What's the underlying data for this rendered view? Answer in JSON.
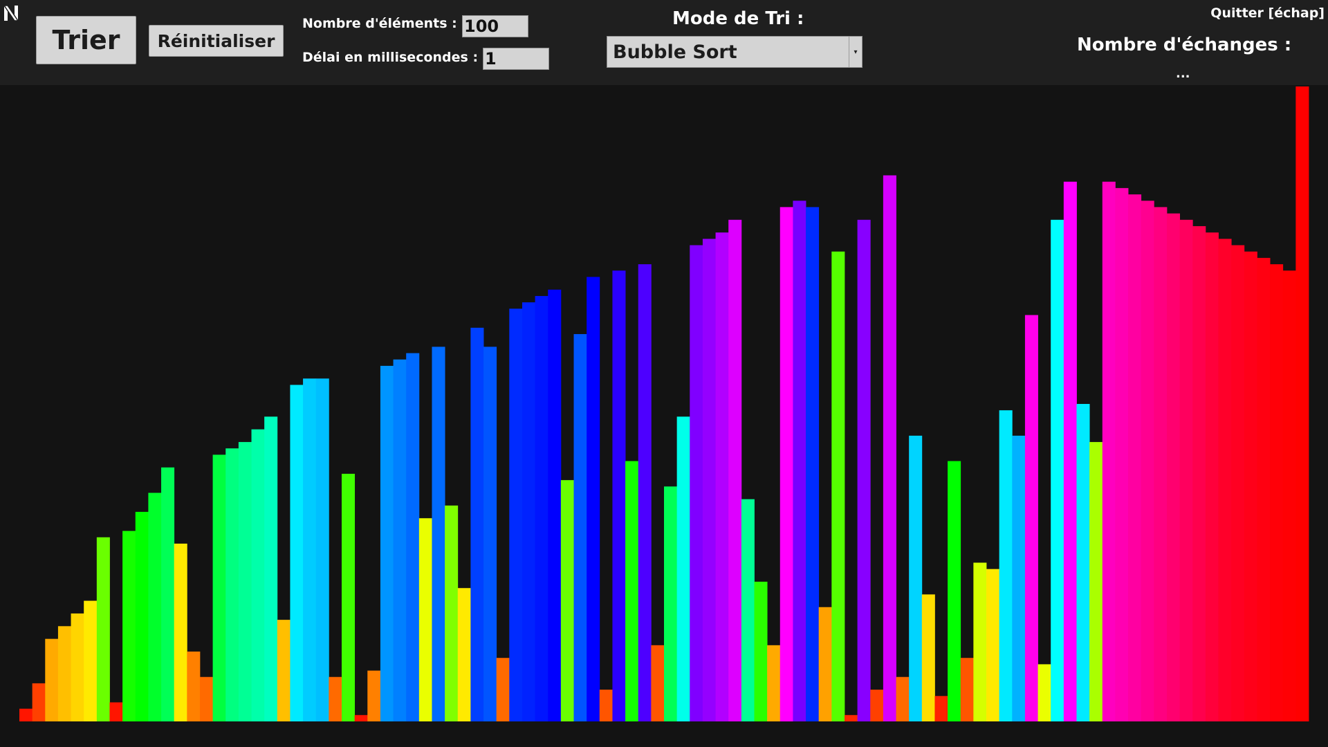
{
  "header": {
    "sort_button": "Trier",
    "reset_button": "Réinitialiser",
    "count_label": "Nombre d'éléments :",
    "count_value": "100",
    "delay_label": "Délai en millisecondes :",
    "delay_value": "1",
    "mode_label": "Mode de Tri :",
    "mode_value": "Bubble Sort",
    "quit_label": "Quitter [échap]",
    "swaps_label": "Nombre d'échanges :",
    "swaps_value": "..."
  },
  "icons": {
    "logo": "app-logo-icon",
    "dropdown": "chevron-down-icon"
  },
  "colors": {
    "background": "#131313",
    "topbar": "#1f1f1f",
    "control": "#d4d4d4"
  },
  "chart_data": {
    "type": "bar",
    "ylim": [
      0,
      100
    ],
    "values": [
      2,
      6,
      13,
      15,
      17,
      19,
      29,
      3,
      30,
      33,
      36,
      40,
      28,
      11,
      7,
      42,
      43,
      44,
      46,
      48,
      16,
      53,
      54,
      54,
      7,
      39,
      1,
      8,
      56,
      57,
      58,
      32,
      59,
      34,
      21,
      62,
      59,
      10,
      65,
      66,
      67,
      68,
      38,
      61,
      70,
      5,
      71,
      41,
      72,
      12,
      37,
      48,
      75,
      76,
      77,
      79,
      35,
      22,
      12,
      81,
      82,
      81,
      18,
      74,
      1,
      79,
      5,
      86,
      7,
      45,
      20,
      4,
      41,
      10,
      25,
      24,
      49,
      45,
      64,
      9,
      79,
      85,
      50,
      44,
      85,
      84,
      83,
      82,
      81,
      80,
      79,
      78,
      77,
      76,
      75,
      74,
      73,
      72,
      71,
      100
    ],
    "hues": [
      5,
      15,
      40,
      45,
      50,
      55,
      95,
      5,
      115,
      120,
      130,
      140,
      55,
      30,
      25,
      135,
      150,
      155,
      160,
      165,
      45,
      185,
      192,
      195,
      25,
      105,
      5,
      30,
      205,
      210,
      215,
      65,
      215,
      90,
      55,
      225,
      220,
      25,
      230,
      232,
      235,
      240,
      95,
      220,
      240,
      20,
      250,
      115,
      258,
      20,
      140,
      175,
      270,
      275,
      282,
      292,
      155,
      110,
      40,
      300,
      268,
      230,
      38,
      100,
      10,
      272,
      15,
      290,
      25,
      190,
      52,
      8,
      120,
      20,
      70,
      55,
      185,
      198,
      305,
      65,
      180,
      300,
      185,
      80,
      315,
      318,
      322,
      326,
      330,
      334,
      338,
      342,
      346,
      350,
      352,
      354,
      356,
      358,
      359,
      0
    ]
  }
}
